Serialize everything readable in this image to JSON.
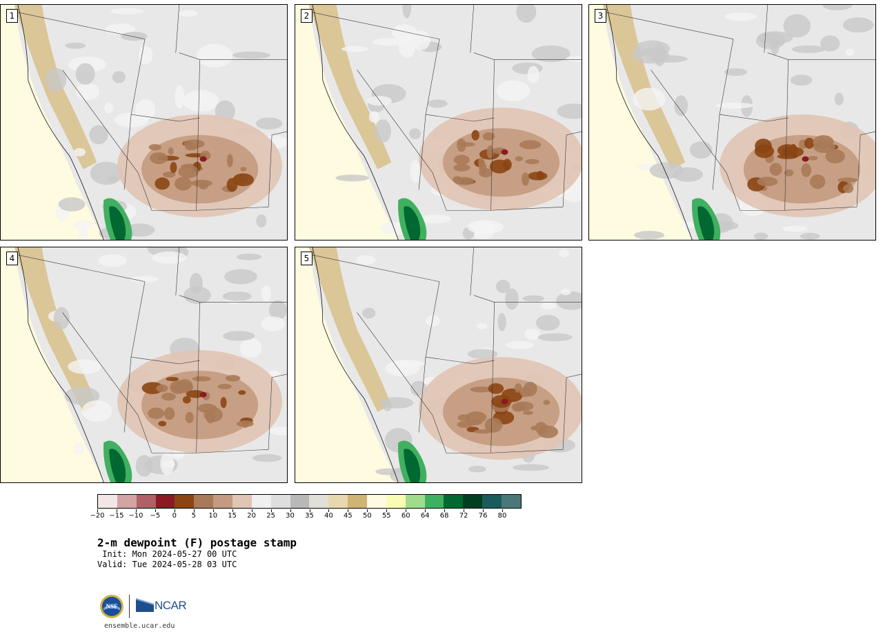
{
  "panels": [
    {
      "label": "1"
    },
    {
      "label": "2"
    },
    {
      "label": "3"
    },
    {
      "label": "4"
    },
    {
      "label": "5"
    }
  ],
  "colorbar": {
    "ticks": [
      "−20",
      "−15",
      "−10",
      "−5",
      "0",
      "5",
      "10",
      "15",
      "20",
      "25",
      "30",
      "35",
      "40",
      "45",
      "50",
      "55",
      "60",
      "64",
      "68",
      "72",
      "76",
      "80"
    ],
    "colors": [
      "#f2e6e6",
      "#d4a3a3",
      "#b06066",
      "#8b1a22",
      "#8b4513",
      "#a87a58",
      "#c49a80",
      "#e0c4b4",
      "#f0f0f0",
      "#dedede",
      "#b8b8b8",
      "#e0e0d8",
      "#e8d8b0",
      "#d0b474",
      "#fffbe0",
      "#fafcb4",
      "#a0dc8c",
      "#40b060",
      "#006830",
      "#004020",
      "#1a5c5c",
      "#4a7878"
    ]
  },
  "title": "2-m dewpoint (F) postage stamp",
  "init": " Init: Mon 2024-05-27 00 UTC",
  "valid": "Valid: Tue 2024-05-28 03 UTC",
  "logos": {
    "nsf": "NSF",
    "ncar": "NCAR"
  },
  "site": "ensemble.ucar.edu"
}
